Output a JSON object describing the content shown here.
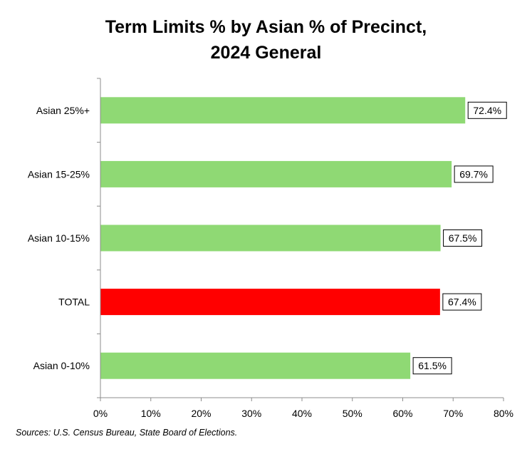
{
  "chart_data": {
    "type": "bar",
    "orientation": "horizontal",
    "title_lines": [
      "Term Limits % by Asian % of Precinct,",
      "2024 General"
    ],
    "categories": [
      "Asian 25%+",
      "Asian 15-25%",
      "Asian 10-15%",
      "TOTAL",
      "Asian 0-10%"
    ],
    "values": [
      72.4,
      69.7,
      67.5,
      67.4,
      61.5
    ],
    "data_labels": [
      "72.4%",
      "69.7%",
      "67.5%",
      "67.4%",
      "61.5%"
    ],
    "bar_colors": [
      "#8fd974",
      "#8fd974",
      "#8fd974",
      "#ff0000",
      "#8fd974"
    ],
    "xlim": [
      0,
      80
    ],
    "x_ticks": [
      "0%",
      "10%",
      "20%",
      "30%",
      "40%",
      "50%",
      "60%",
      "70%",
      "80%"
    ],
    "grid": false,
    "legend": "none"
  },
  "footer": {
    "source": "Sources: U.S. Census Bureau, State Board of Elections."
  }
}
